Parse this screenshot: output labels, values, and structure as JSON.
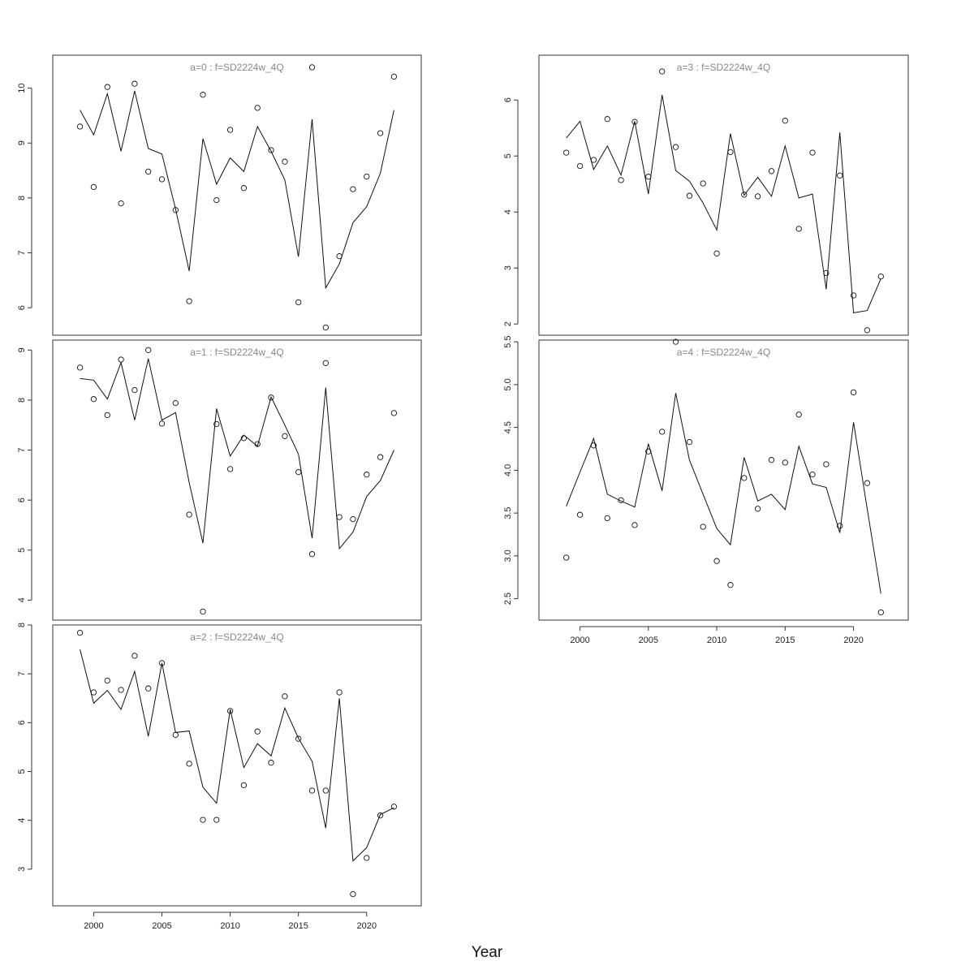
{
  "chart_data": {
    "type": "line",
    "xlabel": "Year",
    "x": [
      1999,
      2000,
      2001,
      2002,
      2003,
      2004,
      2005,
      2006,
      2007,
      2008,
      2009,
      2010,
      2011,
      2012,
      2013,
      2014,
      2015,
      2016,
      2017,
      2018,
      2019,
      2020,
      2021,
      2022
    ],
    "x_ticks": [
      "2000",
      "2005",
      "2010",
      "2015",
      "2020"
    ],
    "x_range": [
      1997,
      2024
    ],
    "panels": [
      {
        "title": "a=0  :  f=SD2224w_4Q",
        "ylim": [
          5.5,
          10.6
        ],
        "y_ticks": [
          "6",
          "7",
          "8",
          "9",
          "10"
        ],
        "series": [
          {
            "style": "line",
            "values": [
              9.6,
              9.15,
              9.9,
              8.85,
              9.95,
              8.9,
              8.8,
              7.8,
              6.67,
              9.08,
              8.25,
              8.73,
              8.48,
              9.3,
              8.85,
              8.33,
              6.93,
              9.43,
              6.36,
              6.8,
              7.55,
              7.84,
              8.45,
              9.6
            ]
          },
          {
            "style": "points",
            "values": [
              9.3,
              8.2,
              10.02,
              7.9,
              10.08,
              8.48,
              8.34,
              7.78,
              6.12,
              9.88,
              7.96,
              9.24,
              8.18,
              9.64,
              8.87,
              8.66,
              6.1,
              10.38,
              5.64,
              6.94,
              8.16,
              8.39,
              9.18,
              10.21
            ]
          }
        ]
      },
      {
        "title": "a=1  :  f=SD2224w_4Q",
        "ylim": [
          3.6,
          9.2
        ],
        "y_ticks": [
          "4",
          "5",
          "6",
          "7",
          "8",
          "9"
        ],
        "series": [
          {
            "style": "line",
            "values": [
              8.43,
              8.4,
              8.02,
              8.75,
              7.6,
              8.83,
              7.6,
              7.75,
              6.35,
              5.14,
              7.83,
              6.88,
              7.3,
              7.08,
              8.06,
              7.5,
              6.92,
              5.24,
              8.25,
              5.03,
              5.36,
              6.07,
              6.39,
              7.0
            ]
          },
          {
            "style": "points",
            "values": [
              8.65,
              8.02,
              7.7,
              8.81,
              8.2,
              9.0,
              7.53,
              7.94,
              5.71,
              3.77,
              7.52,
              6.62,
              7.24,
              7.12,
              8.05,
              7.28,
              6.56,
              4.92,
              8.74,
              5.66,
              5.62,
              6.51,
              6.86,
              7.74
            ]
          }
        ]
      },
      {
        "title": "a=2  :  f=SD2224w_4Q",
        "ylim": [
          2.25,
          8.0
        ],
        "y_ticks": [
          "3",
          "4",
          "5",
          "6",
          "7",
          "8"
        ],
        "series": [
          {
            "style": "line",
            "values": [
              7.5,
              6.4,
              6.66,
              6.27,
              7.05,
              5.72,
              7.22,
              5.8,
              5.83,
              4.68,
              4.35,
              6.27,
              5.08,
              5.57,
              5.32,
              6.3,
              5.68,
              5.21,
              3.84,
              6.5,
              3.17,
              3.44,
              4.12,
              4.26
            ]
          },
          {
            "style": "points",
            "values": [
              7.84,
              6.62,
              6.86,
              6.67,
              7.37,
              6.7,
              7.22,
              5.75,
              5.16,
              4.01,
              4.01,
              6.24,
              4.72,
              5.82,
              5.18,
              6.54,
              5.67,
              4.61,
              4.61,
              6.62,
              2.49,
              3.23,
              4.1,
              4.28
            ]
          }
        ]
      },
      {
        "title": "a=3  :  f=SD2224w_4Q",
        "ylim": [
          1.8,
          6.8
        ],
        "y_ticks": [
          "2",
          "3",
          "4",
          "5",
          "6"
        ],
        "series": [
          {
            "style": "line",
            "values": [
              5.32,
              5.62,
              4.76,
              5.18,
              4.66,
              5.62,
              4.32,
              6.09,
              4.74,
              4.55,
              4.16,
              3.68,
              5.4,
              4.3,
              4.62,
              4.28,
              5.18,
              4.25,
              4.32,
              2.62,
              5.42,
              2.2,
              2.24,
              2.81
            ]
          },
          {
            "style": "points",
            "values": [
              5.06,
              4.82,
              4.93,
              5.66,
              4.57,
              5.61,
              4.63,
              6.51,
              5.16,
              4.29,
              4.51,
              3.26,
              5.07,
              4.31,
              4.28,
              4.73,
              5.63,
              3.7,
              5.06,
              2.91,
              4.65,
              2.51,
              1.89,
              2.85
            ]
          }
        ]
      },
      {
        "title": "a=4  :  f=SD2224w_4Q",
        "ylim": [
          2.25,
          5.52
        ],
        "y_ticks": [
          "2.5",
          "3.0",
          "3.5",
          "4.0",
          "4.5",
          "5.0",
          "5.5"
        ],
        "series": [
          {
            "style": "line",
            "values": [
              3.58,
              3.98,
              4.37,
              3.72,
              3.64,
              3.57,
              4.31,
              3.76,
              4.9,
              4.12,
              3.72,
              3.32,
              3.13,
              4.15,
              3.64,
              3.72,
              3.54,
              4.28,
              3.84,
              3.8,
              3.27,
              4.56,
              3.55,
              2.56
            ]
          },
          {
            "style": "points",
            "values": [
              2.98,
              3.48,
              4.29,
              3.44,
              3.65,
              3.36,
              4.22,
              4.45,
              5.5,
              4.33,
              3.34,
              2.94,
              2.66,
              3.91,
              3.55,
              4.12,
              4.09,
              4.65,
              3.95,
              4.07,
              3.35,
              4.91,
              3.85,
              2.34
            ]
          }
        ]
      }
    ]
  }
}
